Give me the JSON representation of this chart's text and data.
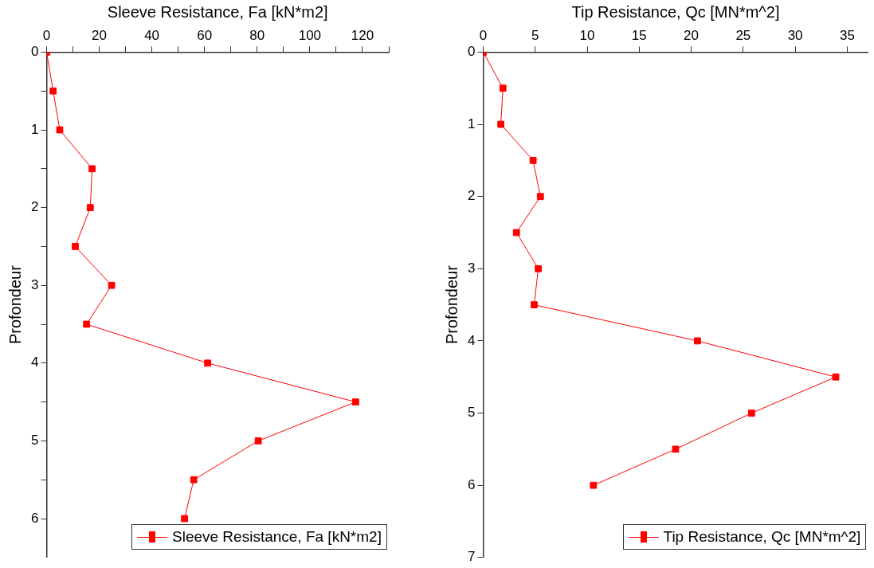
{
  "chart_data": [
    {
      "type": "line",
      "xlabel": "Sleeve Resistance, Fa [kN*m2]",
      "ylabel": "Profondeur",
      "xlim": [
        0,
        130
      ],
      "xticks": [
        0,
        {
          "value": 10,
          "label": null
        },
        20,
        {
          "value": 30,
          "label": null
        },
        40,
        {
          "value": 50,
          "label": null
        },
        60,
        {
          "value": 70,
          "label": null
        },
        80,
        {
          "value": 90,
          "label": null
        },
        100,
        {
          "value": 110,
          "label": null
        },
        120,
        {
          "value": 130,
          "label": null
        }
      ],
      "ylim": [
        6.5,
        0
      ],
      "yticks": [
        0,
        {
          "value": 0.5,
          "label": null
        },
        1,
        {
          "value": 1.5,
          "label": null
        },
        2,
        {
          "value": 2.5,
          "label": null
        },
        3,
        {
          "value": 3.5,
          "label": null
        },
        4,
        {
          "value": 4.5,
          "label": null
        },
        5,
        {
          "value": 5.5,
          "label": null
        },
        6
      ],
      "marker": "square",
      "legend": "bottom right",
      "grid": false,
      "series": [
        {
          "name": "Sleeve Resistance, Fa [kN*m2]",
          "color": "#ff0000",
          "x": [
            0,
            2.5,
            5,
            17.3,
            16.6,
            10.9,
            24.7,
            15.2,
            61.2,
            117.4,
            80.4,
            55.9,
            52.4
          ],
          "values": [
            0,
            0.5,
            1,
            1.5,
            2,
            2.5,
            3,
            3.5,
            4,
            4.5,
            5,
            5.5,
            6
          ]
        }
      ]
    },
    {
      "type": "line",
      "xlabel": "Tip Resistance, Qc [MN*m^2]",
      "ylabel": "Profondeur",
      "xlim": [
        0,
        37
      ],
      "xticks": [
        0,
        5,
        10,
        15,
        20,
        25,
        30,
        35
      ],
      "ylim": [
        7,
        0
      ],
      "yticks": [
        0,
        1,
        2,
        3,
        4,
        5,
        6,
        7
      ],
      "marker": "square",
      "legend": "bottom right",
      "grid": false,
      "series": [
        {
          "name": "Tip Resistance, Qc [MN*m^2]",
          "color": "#ff0000",
          "x": [
            0,
            1.9,
            1.7,
            4.8,
            5.5,
            3.2,
            5.3,
            4.9,
            20.6,
            33.9,
            25.8,
            18.5,
            10.6
          ],
          "values": [
            0,
            0.5,
            1,
            1.5,
            2,
            2.5,
            3,
            3.5,
            4,
            4.5,
            5,
            5.5,
            6
          ]
        }
      ]
    }
  ]
}
